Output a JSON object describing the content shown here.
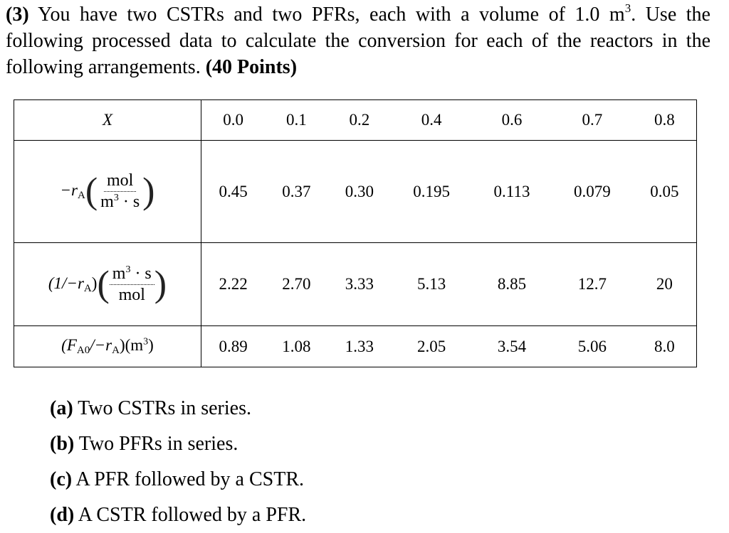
{
  "problem": {
    "number": "(3)",
    "text_before_unit": " You have two CSTRs and two PFRs, each with a volume of 1.0 m",
    "unit_exponent": "3",
    "text_after_unit": ". Use the following processed data to calculate the conversion for each of the reactors in the following arrangements. ",
    "points": "(40 Points)"
  },
  "table": {
    "header_label": "X",
    "x_values": [
      "0.0",
      "0.1",
      "0.2",
      "0.4",
      "0.6",
      "0.7",
      "0.8"
    ],
    "rows": [
      {
        "label": {
          "prefix": "−r",
          "sub": "A",
          "num": "mol",
          "den": "m",
          "den_exp": "3",
          "den_rest": " · s"
        },
        "values": [
          "0.45",
          "0.37",
          "0.30",
          "0.195",
          "0.113",
          "0.079",
          "0.05"
        ]
      },
      {
        "label": {
          "prefix": "(1/−r",
          "sub": "A",
          "suffix": ")",
          "num": "m",
          "num_exp": "3",
          "num_rest": " · s",
          "den": "mol"
        },
        "values": [
          "2.22",
          "2.70",
          "3.33",
          "5.13",
          "8.85",
          "12.7",
          "20"
        ]
      },
      {
        "label": {
          "a": "(F",
          "a_sub": "A0",
          "b": "/−r",
          "b_sub": "A",
          "c": ")(m",
          "c_exp": "3",
          "d": ")"
        },
        "values": [
          "0.89",
          "1.08",
          "1.33",
          "2.05",
          "3.54",
          "5.06",
          "8.0"
        ]
      }
    ]
  },
  "parts": [
    {
      "label": "(a)",
      "text": " Two CSTRs in series."
    },
    {
      "label": "(b)",
      "text": " Two PFRs in series."
    },
    {
      "label": "(c)",
      "text": " A PFR followed by a CSTR."
    },
    {
      "label": "(d)",
      "text": " A CSTR followed by a PFR."
    }
  ]
}
